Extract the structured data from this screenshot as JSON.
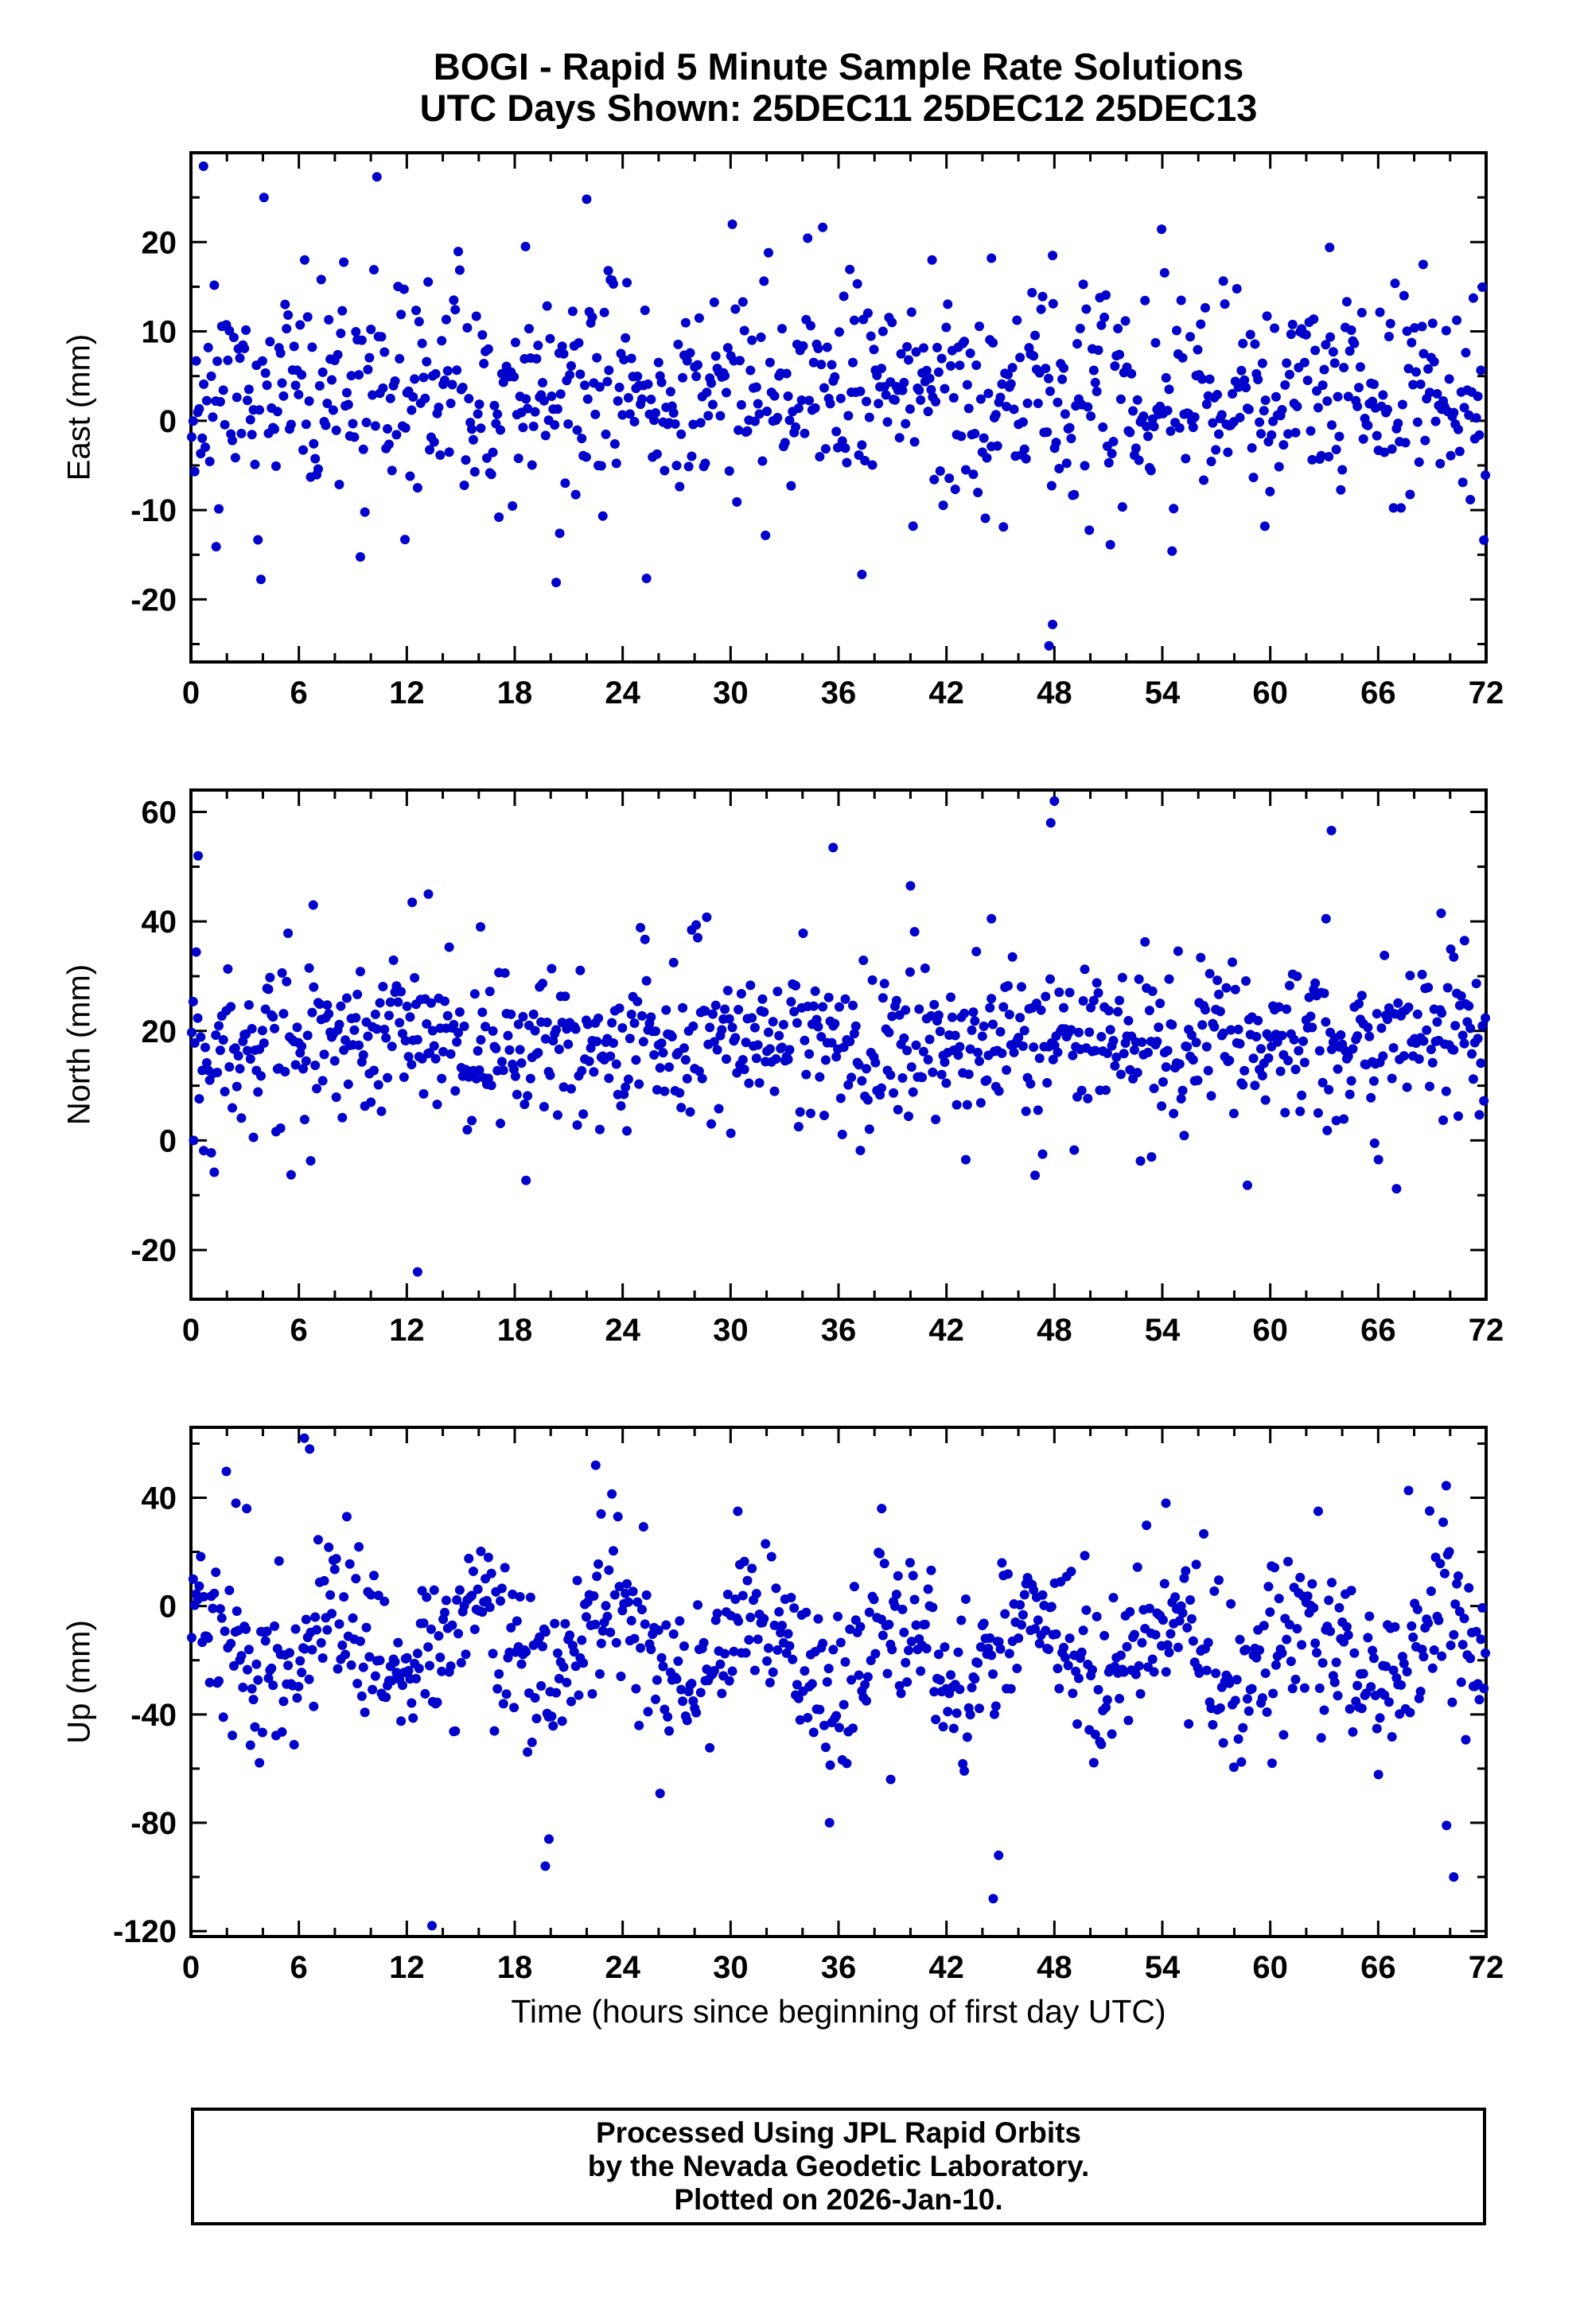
{
  "title": {
    "line1": "BOGI - Rapid 5 Minute Sample Rate Solutions",
    "line2": "UTC Days Shown:  25DEC11 25DEC12 25DEC13"
  },
  "xlabel": "Time (hours since beginning of first day UTC)",
  "footer": {
    "line1": "Processed Using JPL Rapid Orbits",
    "line2": "by the Nevada Geodetic Laboratory.",
    "line3": "Plotted on 2026-Jan-10."
  },
  "colors": {
    "marker": "#0000CD",
    "axis": "#000000"
  },
  "chart_data": [
    {
      "type": "scatter",
      "name": "east",
      "ylabel": "East (mm)",
      "xlim": [
        0,
        72
      ],
      "xticks": [
        0,
        6,
        12,
        18,
        24,
        30,
        36,
        42,
        48,
        54,
        60,
        66,
        72
      ],
      "xtick_step": 6,
      "xtick_minor": 2,
      "ylim": [
        -27,
        30
      ],
      "yticks": [
        -20,
        -10,
        0,
        10,
        20
      ],
      "ytick_minor": 5,
      "n": 860,
      "mean": 3,
      "sd": 5.5,
      "seed": 11,
      "outliers": [
        [
          0.7,
          28.5
        ],
        [
          22.0,
          24.8
        ],
        [
          18.6,
          19.5
        ],
        [
          47.7,
          -25.2
        ],
        [
          47.9,
          -22.8
        ],
        [
          37.3,
          -17.2
        ],
        [
          11.9,
          -13.3
        ],
        [
          20.5,
          -12.6
        ],
        [
          1.4,
          -14.1
        ],
        [
          63.3,
          19.4
        ],
        [
          47.9,
          18.5
        ],
        [
          44.5,
          18.2
        ],
        [
          41.2,
          18.0
        ],
        [
          68.5,
          17.5
        ],
        [
          59.7,
          -11.8
        ],
        [
          23.2,
          16.8
        ]
      ]
    },
    {
      "type": "scatter",
      "name": "north",
      "ylabel": "North (mm)",
      "xlim": [
        0,
        72
      ],
      "xticks": [
        0,
        6,
        12,
        18,
        24,
        30,
        36,
        42,
        48,
        54,
        60,
        66,
        72
      ],
      "xtick_step": 6,
      "xtick_minor": 2,
      "ylim": [
        -29,
        64
      ],
      "yticks": [
        -20,
        0,
        20,
        40,
        60
      ],
      "ytick_minor": 10,
      "n": 860,
      "mean": 18,
      "sd": 6.5,
      "seed": 22,
      "outliers": [
        [
          0.4,
          52
        ],
        [
          12.6,
          -24
        ],
        [
          35.7,
          53.5
        ],
        [
          40.0,
          46.5
        ],
        [
          47.8,
          58
        ],
        [
          48.0,
          62
        ],
        [
          63.4,
          56.6
        ],
        [
          63.1,
          40.5
        ],
        [
          0.15,
          0
        ],
        [
          53.4,
          -3
        ],
        [
          65.8,
          -0.5
        ],
        [
          69.5,
          41.5
        ],
        [
          44.5,
          40.5
        ],
        [
          13.2,
          45
        ],
        [
          12.3,
          43.5
        ],
        [
          6.8,
          43
        ],
        [
          16.1,
          39
        ],
        [
          70.8,
          36.5
        ],
        [
          70.2,
          33.5
        ]
      ]
    },
    {
      "type": "scatter",
      "name": "up",
      "ylabel": "Up (mm)",
      "xlim": [
        0,
        72
      ],
      "xticks": [
        0,
        6,
        12,
        18,
        24,
        30,
        36,
        42,
        48,
        54,
        60,
        66,
        72
      ],
      "xtick_step": 6,
      "xtick_minor": 2,
      "ylim": [
        -122,
        66
      ],
      "yticks": [
        -120,
        -80,
        -40,
        0,
        40
      ],
      "ytick_minor": 20,
      "n": 860,
      "mean": -16,
      "sd": 14,
      "wave": {
        "amp": 13,
        "period": 7.7,
        "phase": 1.2
      },
      "seed": 33,
      "outliers": [
        [
          6.3,
          62
        ],
        [
          6.6,
          58
        ],
        [
          22.5,
          52
        ],
        [
          22.8,
          34
        ],
        [
          2.5,
          38
        ],
        [
          3.1,
          36
        ],
        [
          13.4,
          -118
        ],
        [
          19.7,
          -96
        ],
        [
          19.9,
          -86
        ],
        [
          44.6,
          -108
        ],
        [
          44.9,
          -92
        ],
        [
          70.2,
          -100
        ],
        [
          69.8,
          -81
        ],
        [
          35.5,
          -80
        ],
        [
          38.9,
          -64
        ],
        [
          60.1,
          -58
        ],
        [
          54.2,
          38
        ],
        [
          30.4,
          35
        ],
        [
          38.4,
          36
        ]
      ]
    }
  ]
}
